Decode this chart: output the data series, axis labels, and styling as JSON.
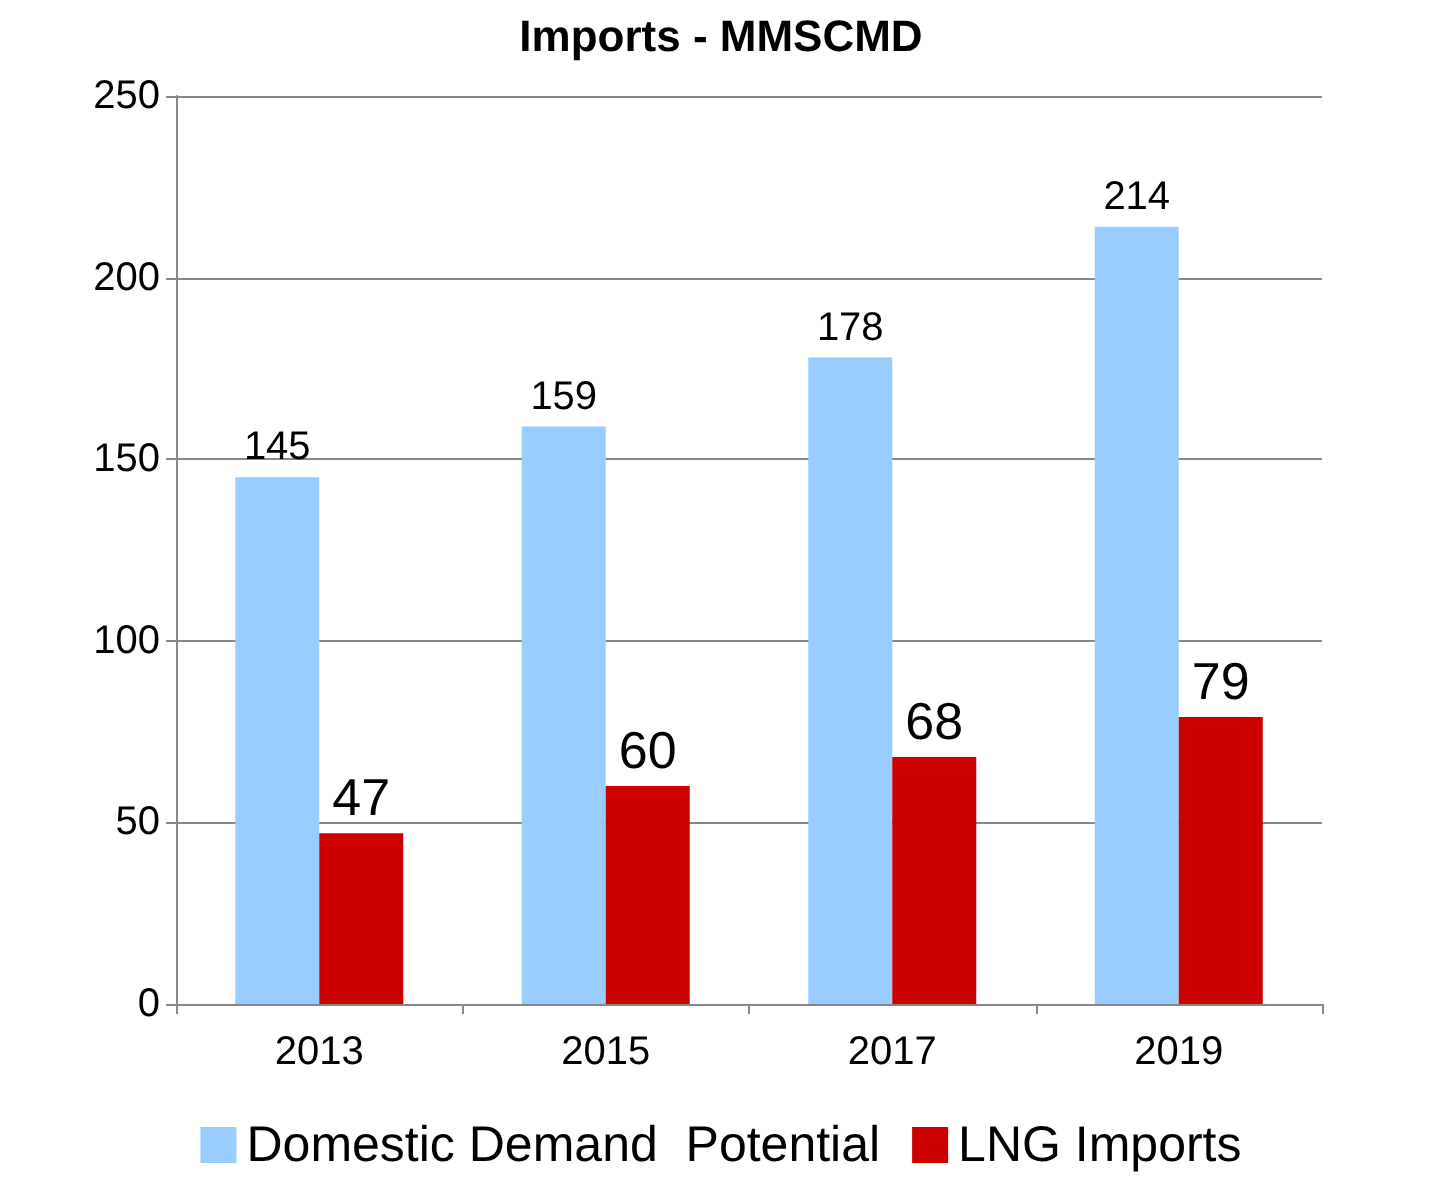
{
  "chart_data": {
    "type": "bar",
    "title": "Imports - MMSCMD",
    "categories": [
      "2013",
      "2015",
      "2017",
      "2019"
    ],
    "series": [
      {
        "name": "Domestic Demand  Potential",
        "color": "#99ccff",
        "values": [
          145,
          159,
          178,
          214
        ]
      },
      {
        "name": "LNG Imports",
        "color": "#cc0000",
        "values": [
          47,
          60,
          68,
          79
        ]
      }
    ],
    "ylim": [
      0,
      250
    ],
    "yticks": [
      0,
      50,
      100,
      150,
      200,
      250
    ],
    "grid": "y",
    "legend": "bottom",
    "data_labels": true
  }
}
